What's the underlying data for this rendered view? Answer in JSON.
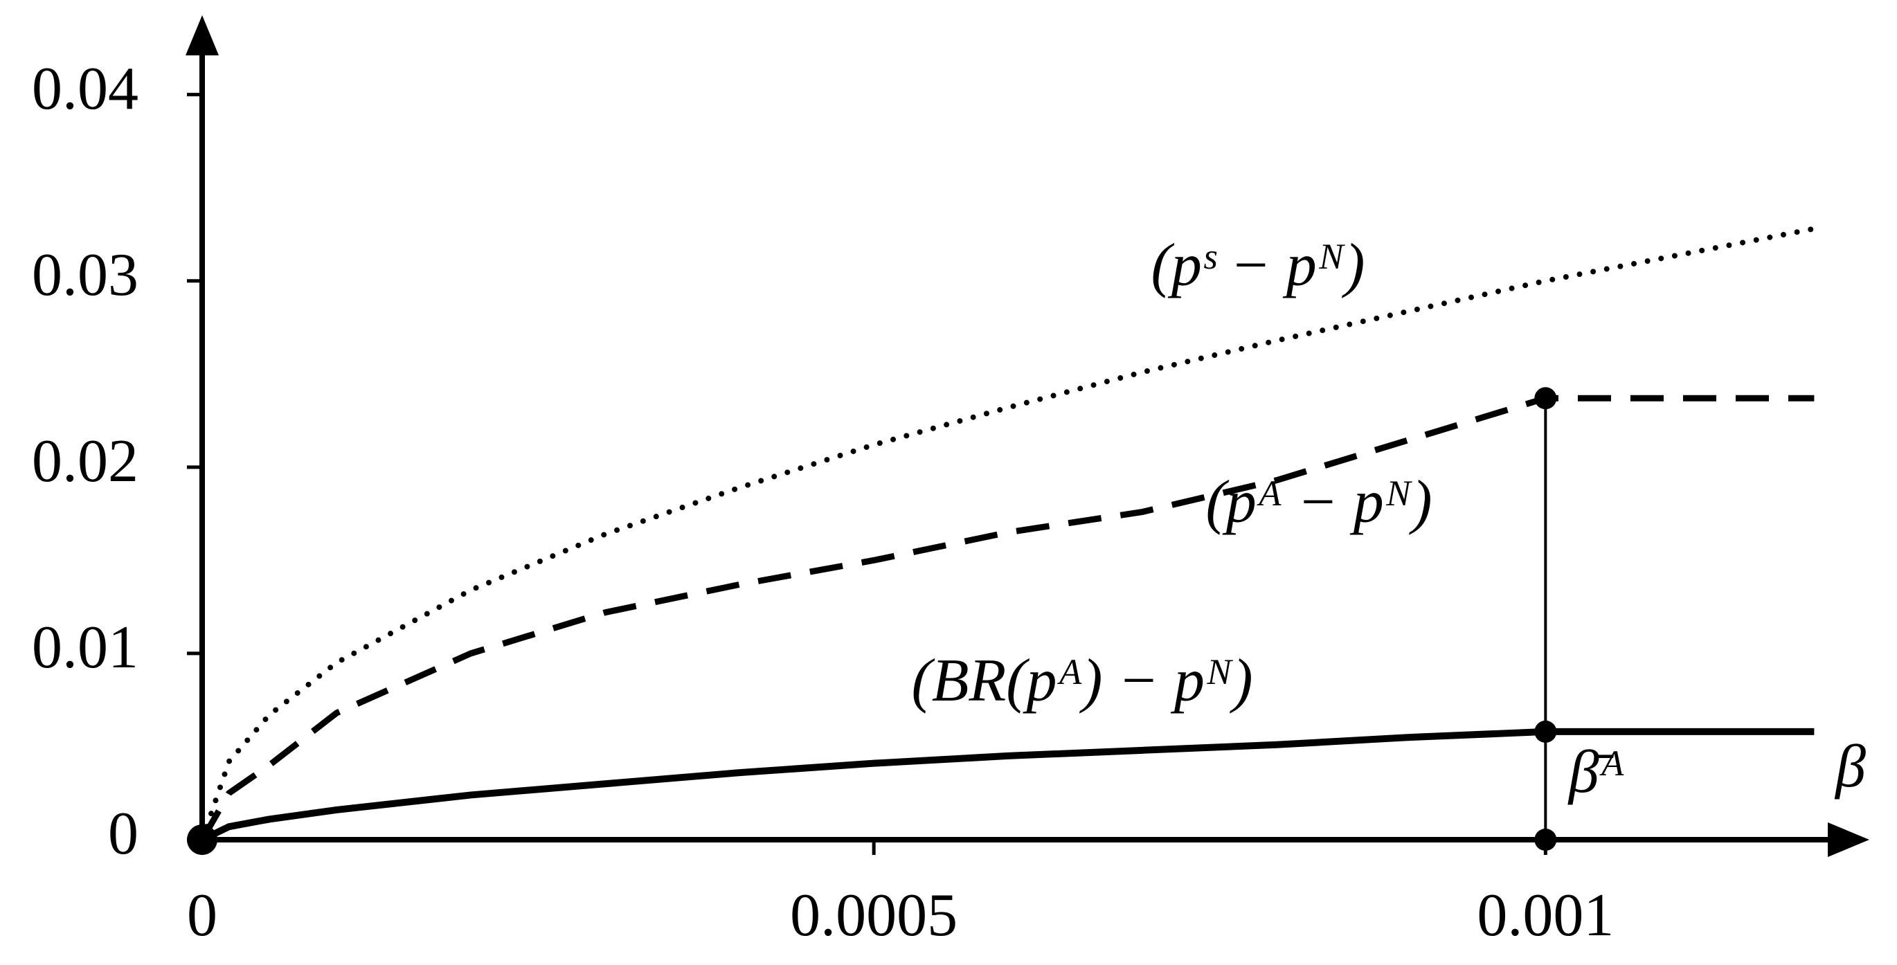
{
  "chart_data": {
    "type": "line",
    "x_label": "β",
    "annotations": [
      "β̄ᴬ"
    ],
    "x": [
      0,
      2e-05,
      5e-05,
      0.0001,
      0.0002,
      0.0003,
      0.0004,
      0.0005,
      0.0006,
      0.0007,
      0.0008,
      0.0009,
      0.001,
      0.0011,
      0.0012
    ],
    "series": [
      {
        "name": "(pˢ − pᴺ)",
        "color": "#000000",
        "style": "dotted",
        "values": [
          0,
          0.0042,
          0.0067,
          0.0095,
          0.0134,
          0.0164,
          0.0189,
          0.0212,
          0.0232,
          0.0251,
          0.0268,
          0.0284,
          0.03,
          0.0314,
          0.0328
        ]
      },
      {
        "name": "(pᴬ − pᴺ)",
        "color": "#000000",
        "style": "dashed",
        "values": [
          0,
          0.0025,
          0.004,
          0.0068,
          0.01,
          0.0122,
          0.0137,
          0.015,
          0.0165,
          0.0176,
          0.0193,
          0.0215,
          0.0237,
          0.0237,
          0.0237
        ]
      },
      {
        "name": "(BR(pᴬ) − pᴺ)",
        "color": "#000000",
        "style": "solid",
        "values": [
          0,
          0.0007,
          0.0011,
          0.0016,
          0.0024,
          0.003,
          0.0036,
          0.0041,
          0.0045,
          0.0048,
          0.0051,
          0.0055,
          0.0058,
          0.0058,
          0.0058
        ]
      }
    ],
    "markers": {
      "x": [
        0,
        0.001,
        0.001,
        0.001
      ],
      "y": [
        0,
        0.0237,
        0.0058,
        0
      ]
    },
    "xlim": [
      0,
      0.00124
    ],
    "xticks": [
      0,
      0.0005,
      0.001
    ],
    "ylim": [
      0,
      0.044
    ],
    "yticks": [
      0,
      0.01,
      0.02,
      0.03,
      0.04
    ],
    "grid": false
  }
}
